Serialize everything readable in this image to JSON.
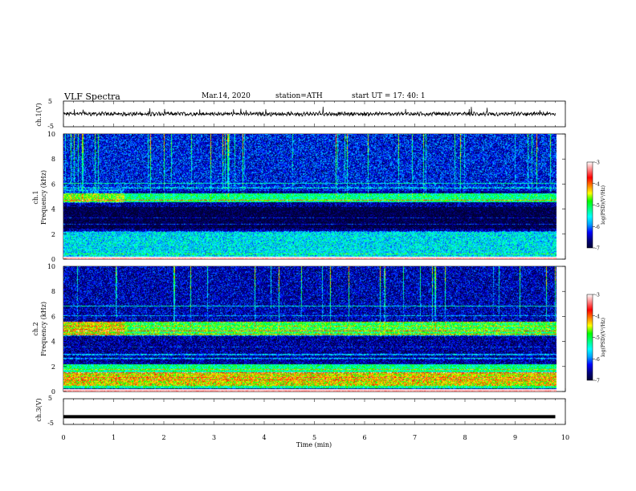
{
  "header": {
    "title": "VLF  Spectra",
    "date": "Mar.14, 2020",
    "station": "station=ATH",
    "start": "start  UT  =   17: 40: 1"
  },
  "chart_data": [
    {
      "type": "line",
      "id": "ch1-waveform",
      "ylabel": "ch.1(V)",
      "yticks": [
        "5",
        "-5"
      ],
      "ylim": [
        -5,
        5
      ],
      "x_range_min": [
        0,
        9.8
      ],
      "description_values": "continuous noisy waveform centered near 0 V with amplitude roughly within ±1 V and occasional spikes to about +2 V"
    },
    {
      "type": "heatmap",
      "id": "ch1-spectrogram",
      "ylabel": "ch.1\nFrequency (kHz)",
      "ylabel_line1": "ch.1",
      "ylabel_line2": "Frequency (kHz)",
      "yticks": [
        "0",
        "2",
        "4",
        "6",
        "8",
        "10"
      ],
      "ylim": [
        0,
        10
      ],
      "x_range_min": [
        0,
        9.8
      ],
      "colorbar": {
        "label": "log(PSD)(V²/Hz)",
        "ticks": [
          "-3",
          "-4",
          "-5",
          "-6",
          "-7"
        ],
        "range": [
          -7,
          -3
        ]
      },
      "features": [
        {
          "freq_khz": [
            4.6,
            5.3
          ],
          "level": -5.2,
          "note": "band"
        },
        {
          "freq_khz": [
            0.2,
            2.2
          ],
          "level": -5.6,
          "note": "low-frequency band with lines"
        },
        {
          "freq_khz": [
            2.5,
            4.2
          ],
          "level": -7.0,
          "note": "quiet band"
        },
        {
          "freq_khz": [
            5.5,
            10
          ],
          "level": -6.3,
          "note": "background with vertical spherics"
        }
      ]
    },
    {
      "type": "heatmap",
      "id": "ch2-spectrogram",
      "ylabel_line1": "ch.2",
      "ylabel_line2": "Frequency (kHz)",
      "yticks": [
        "0",
        "2",
        "4",
        "6",
        "8",
        "10"
      ],
      "ylim": [
        0,
        10
      ],
      "x_range_min": [
        0,
        9.8
      ],
      "colorbar": {
        "label": "log(PSD)(V²/Hz)",
        "ticks": [
          "-3",
          "-4",
          "-5",
          "-6",
          "-7"
        ],
        "range": [
          -7,
          -3
        ]
      },
      "features": [
        {
          "freq_khz": [
            4.5,
            5.6
          ],
          "level": -5.0,
          "note": "band"
        },
        {
          "freq_khz": [
            0.3,
            2.2
          ],
          "level": -5.2,
          "note": "strong low-frequency band"
        },
        {
          "freq_khz": [
            2.5,
            4.3
          ],
          "level": -6.6,
          "note": "moderate"
        },
        {
          "freq_khz": [
            5.6,
            10
          ],
          "level": -6.5,
          "note": "background with vertical spherics"
        }
      ]
    },
    {
      "type": "line",
      "id": "ch3-waveform",
      "ylabel": "ch.3(V)",
      "yticks": [
        "5",
        "-5"
      ],
      "ylim": [
        -5,
        5
      ],
      "x_range_min": [
        0,
        9.8
      ],
      "constant_value_v": -2
    }
  ],
  "xaxis": {
    "label": "Time  (min)",
    "ticks": [
      "0",
      "1",
      "2",
      "3",
      "4",
      "5",
      "6",
      "7",
      "8",
      "9",
      "10"
    ],
    "xlim": [
      0,
      10
    ]
  },
  "colors": {
    "colormap": [
      "#000033",
      "#000080",
      "#0000ff",
      "#00a0ff",
      "#00ffff",
      "#00ff80",
      "#00ff00",
      "#ffff00",
      "#ff8000",
      "#ff0000",
      "#ff8080",
      "#ffffff"
    ]
  }
}
